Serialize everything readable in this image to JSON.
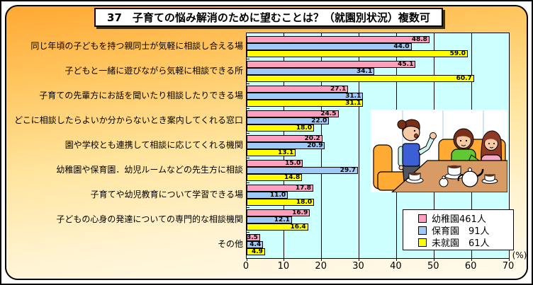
{
  "chart_data": {
    "type": "bar",
    "orientation": "horizontal",
    "title": "37　子育ての悩み解消のために望むことは？（就園別状況）複数可",
    "categories": [
      "同じ年頃の子どもを持つ親同士が気軽に相談し合える場",
      "子どもと一緒に遊びながら気軽に相談できる所",
      "子育ての先輩方にお話を聞いたり相談したりできる場",
      "どこに相談したらよいか分からないとき案内してくれる窓口",
      "園や学校とも連携して相談に応じてくれる機関",
      "幼稚園や保育園．幼児ルームなどの先生方に相談",
      "子育てや幼児教育について学習できる場",
      "子どもの心身の発達についての専門的な相談機関",
      "その他"
    ],
    "series": [
      {
        "name": "幼稚園461人",
        "color": "#FF9EBD",
        "values": [
          48.8,
          45.1,
          27.1,
          24.5,
          20.2,
          15.0,
          17.8,
          16.9,
          3.5
        ]
      },
      {
        "name": "保育園　91人",
        "color": "#9FC9F7",
        "values": [
          44.0,
          34.1,
          31.1,
          22.0,
          20.9,
          29.7,
          11.0,
          12.1,
          4.4
        ]
      },
      {
        "name": "未就園　61人",
        "color": "#FFFF00",
        "values": [
          59.0,
          60.7,
          31.1,
          18.0,
          13.1,
          14.8,
          18.0,
          16.4,
          4.9
        ]
      }
    ],
    "xlim": [
      0,
      70
    ],
    "xticks": [
      0,
      10,
      20,
      30,
      40,
      50,
      60,
      70
    ],
    "x_unit_label": "(%)",
    "value_label_decimals": 1,
    "plot_bg": "#CCFFFF",
    "gridlines": "vertical-major",
    "legend_position": "inside-bottom-right",
    "annotation": "三人の母親がお茶を飲みながら相談しているイラスト"
  }
}
